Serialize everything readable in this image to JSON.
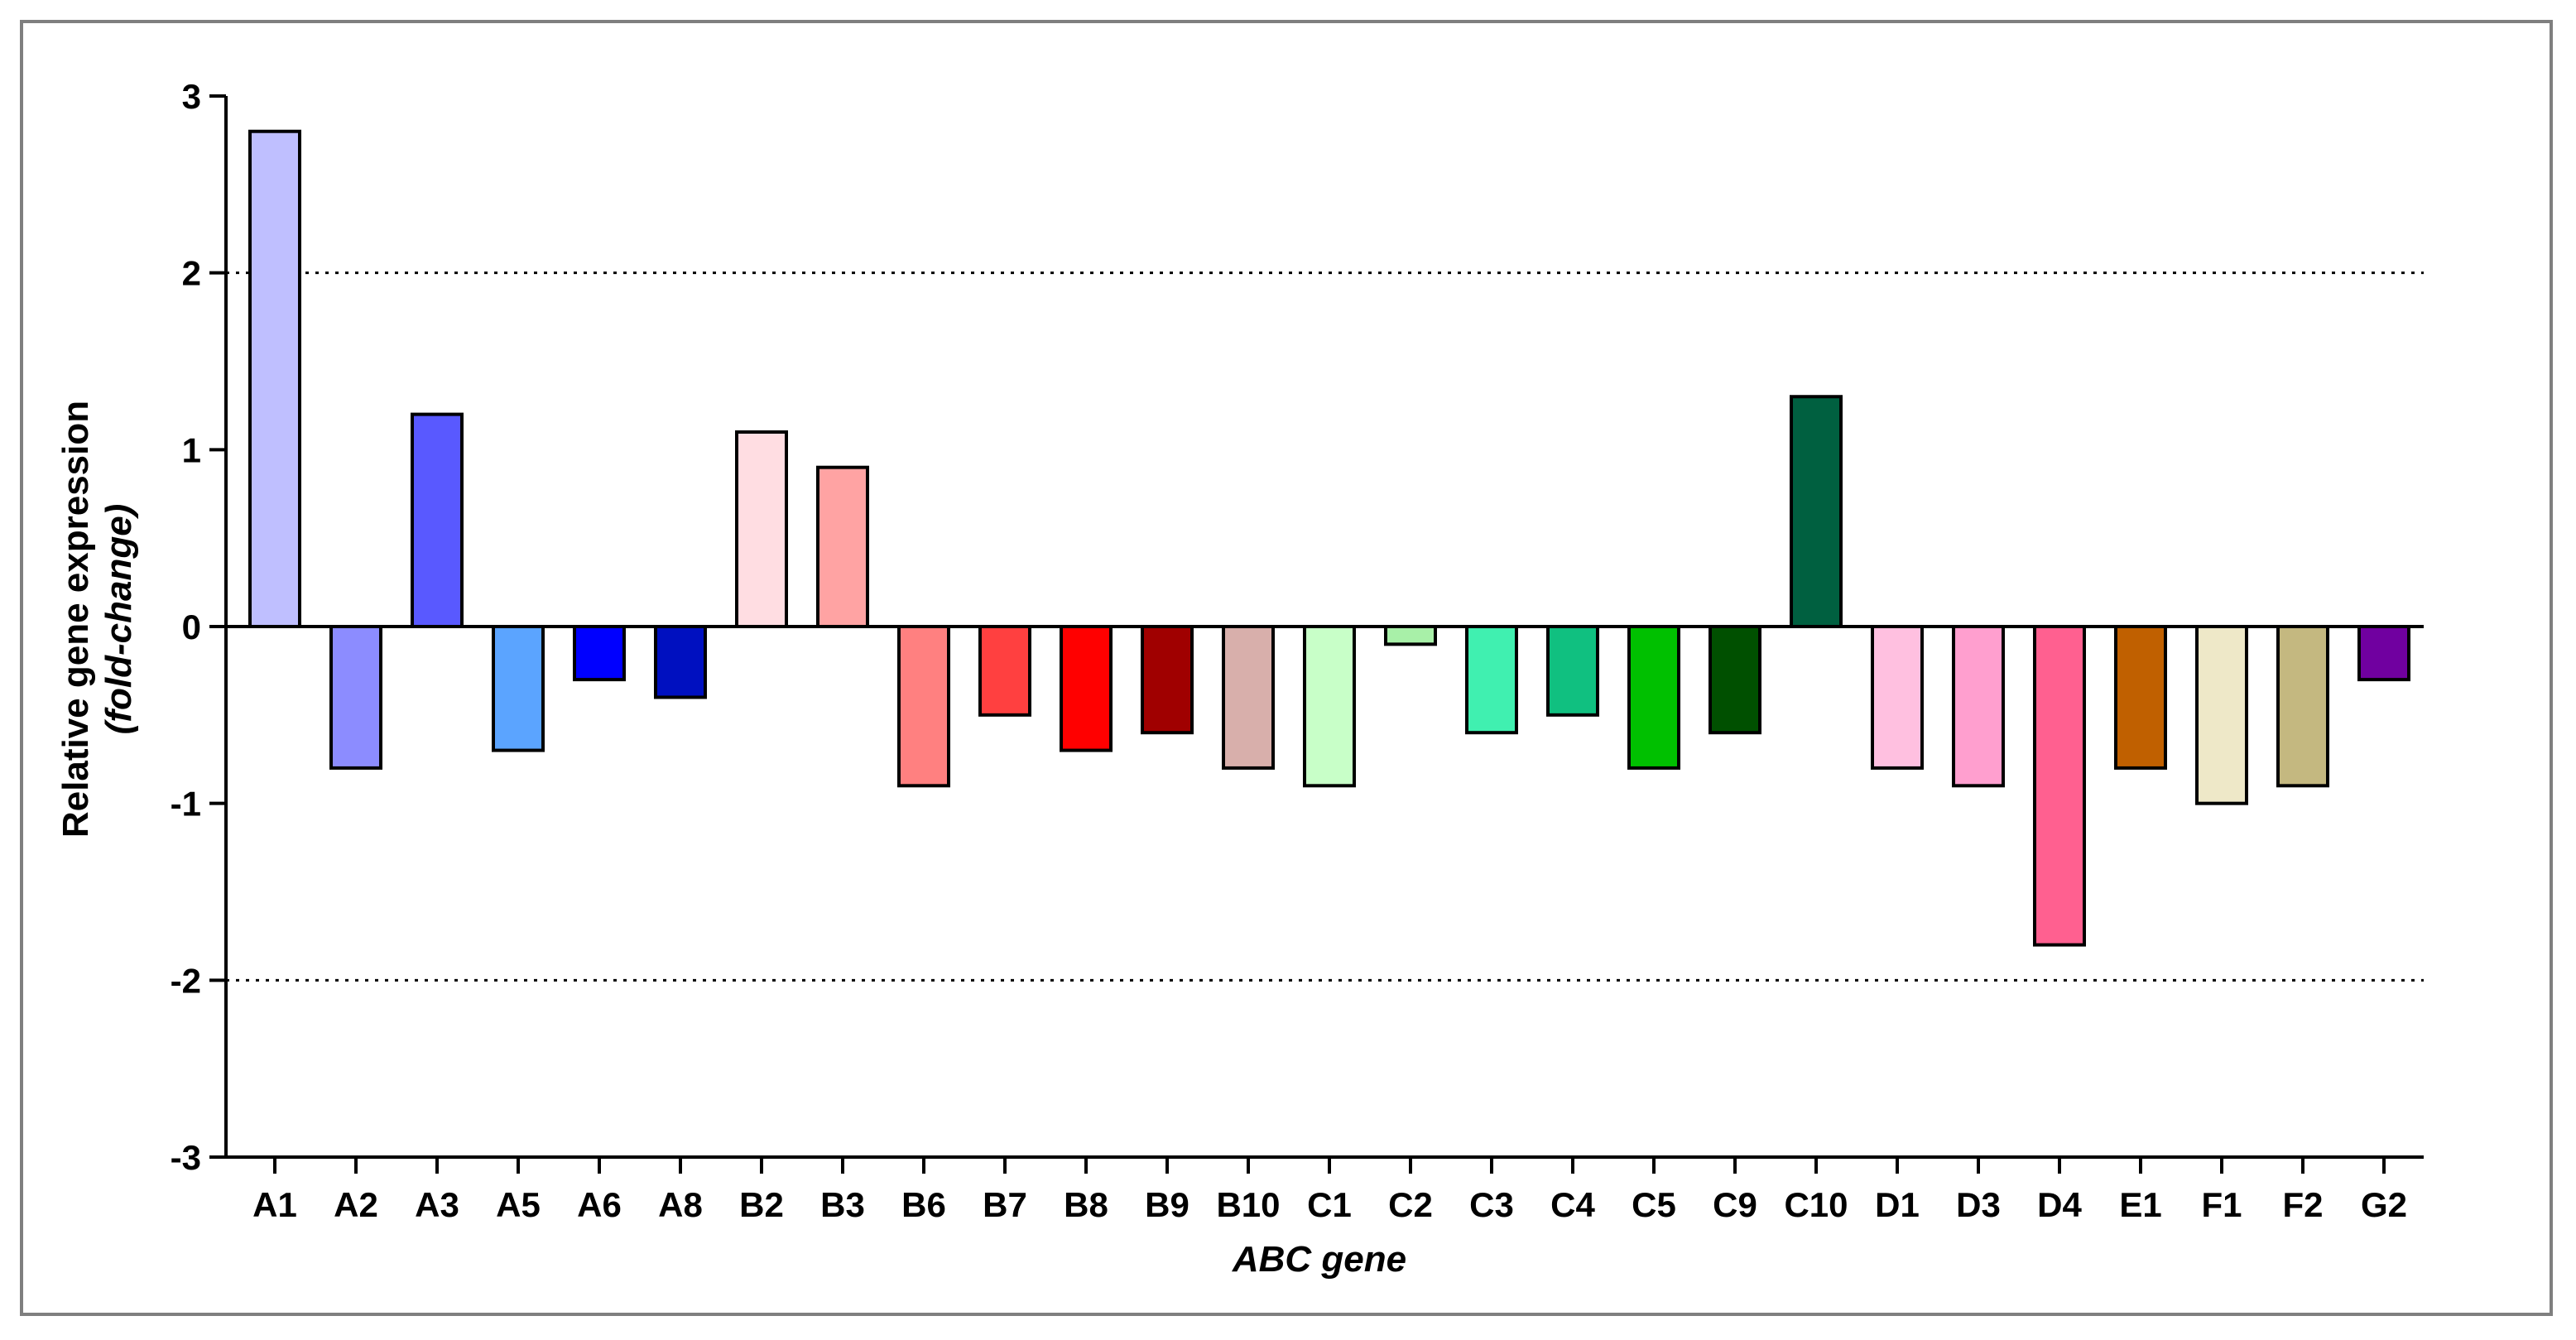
{
  "chart_data": {
    "type": "bar",
    "title": "",
    "xlabel": "ABC gene",
    "ylabel": "Relative gene expression",
    "ylabel_sub": "(fold-change)",
    "ylim": [
      -3,
      3
    ],
    "yticks": [
      3,
      2,
      1,
      0,
      -1,
      -2,
      -3
    ],
    "reference_lines": [
      2,
      -2
    ],
    "grid": false,
    "categories": [
      "A1",
      "A2",
      "A3",
      "A5",
      "A6",
      "A8",
      "B2",
      "B3",
      "B6",
      "B7",
      "B8",
      "B9",
      "B10",
      "C1",
      "C2",
      "C3",
      "C4",
      "C5",
      "C9",
      "C10",
      "D1",
      "D3",
      "D4",
      "E1",
      "F1",
      "F2",
      "G2"
    ],
    "values": [
      2.8,
      -0.8,
      1.2,
      -0.7,
      -0.3,
      -0.4,
      1.1,
      0.9,
      -0.9,
      -0.5,
      -0.7,
      -0.6,
      -0.8,
      -0.9,
      -0.1,
      -0.6,
      -0.5,
      -0.8,
      -0.6,
      1.3,
      -0.8,
      -0.9,
      -1.8,
      -0.8,
      -1.0,
      -0.9,
      -0.3
    ],
    "colors": [
      "#BFBFFF",
      "#8C8CFF",
      "#5959FF",
      "#5BA4FF",
      "#0000FF",
      "#0010C0",
      "#FFDDE2",
      "#FFA3A3",
      "#FF8080",
      "#FF4040",
      "#FF0000",
      "#A00000",
      "#D8AFAB",
      "#C8FFC8",
      "#A8F0A8",
      "#40F0B0",
      "#10C080",
      "#00C000",
      "#005000",
      "#006040",
      "#FFC0E0",
      "#FF9FCF",
      "#FF6090",
      "#C06000",
      "#EEE8C8",
      "#C4B880",
      "#7000A0"
    ]
  }
}
